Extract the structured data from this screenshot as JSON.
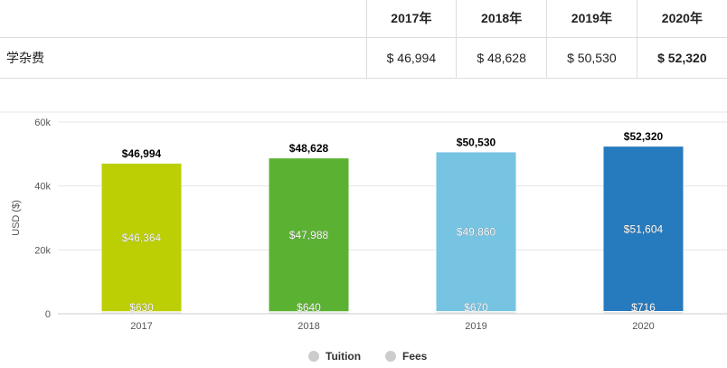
{
  "table": {
    "header_label": "",
    "years": [
      "2017年",
      "2018年",
      "2019年",
      "2020年"
    ],
    "row_label": "学杂费",
    "values": [
      "$ 46,994",
      "$ 48,628",
      "$ 50,530",
      "$ 52,320"
    ]
  },
  "colors": {
    "bars": [
      "#bccf04",
      "#5bb131",
      "#76c3e2",
      "#267abe"
    ],
    "fees_segment": "#e8e8e8",
    "legend_dot": "#cccccc",
    "grid": "#e6e6e6"
  },
  "chart_data": {
    "type": "bar",
    "stacked": true,
    "categories": [
      "2017",
      "2018",
      "2019",
      "2020"
    ],
    "series": [
      {
        "name": "Tuition",
        "values": [
          46364,
          47988,
          49860,
          51604
        ],
        "labels": [
          "$46,364",
          "$47,988",
          "$49,860",
          "$51,604"
        ]
      },
      {
        "name": "Fees",
        "values": [
          630,
          640,
          670,
          716
        ],
        "labels": [
          "$630",
          "$640",
          "$670",
          "$716"
        ]
      }
    ],
    "totals": [
      46994,
      48628,
      50530,
      52320
    ],
    "total_labels": [
      "$46,994",
      "$48,628",
      "$50,530",
      "$52,320"
    ],
    "ylabel": "USD ($)",
    "xlabel": "",
    "ylim": [
      0,
      60000
    ],
    "yticks": [
      0,
      20000,
      40000,
      60000
    ],
    "ytick_labels": [
      "0",
      "20k",
      "40k",
      "60k"
    ],
    "grid": true,
    "legend": {
      "position": "bottom",
      "items": [
        "Tuition",
        "Fees"
      ]
    }
  }
}
